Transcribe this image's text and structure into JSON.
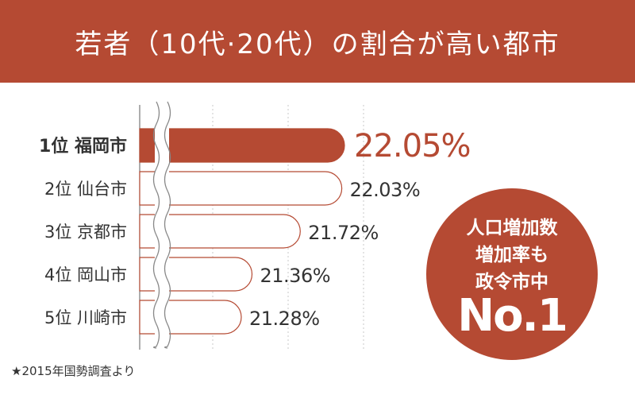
{
  "title": "若者（10代·20代）の割合が高い都市",
  "chart_data": {
    "type": "bar",
    "orientation": "horizontal",
    "categories": [
      "1位 福岡市",
      "2位 仙台市",
      "3位 京都市",
      "4位 岡山市",
      "5位 川崎市"
    ],
    "values": [
      22.05,
      22.03,
      21.72,
      21.36,
      21.28
    ],
    "value_labels": [
      "22.05%",
      "22.03%",
      "21.72%",
      "21.36%",
      "21.28%"
    ],
    "axis_break": true,
    "grid": true
  },
  "callout": {
    "line1": "人口増加数",
    "line2": "増加率も",
    "line3": "政令市中",
    "big": "No.1"
  },
  "footnote": "★2015年国勢調査より",
  "colors": {
    "accent": "#b54a33",
    "text": "#333333",
    "grid": "#c9c9c9"
  }
}
